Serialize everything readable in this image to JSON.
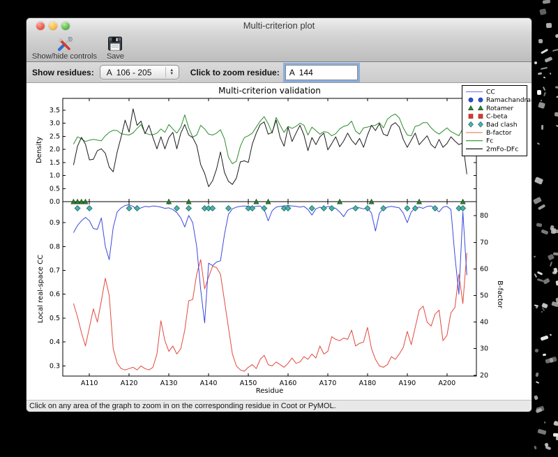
{
  "window": {
    "title": "Multi-criterion plot"
  },
  "toolbar": {
    "show_hide_label": "Show/hide controls",
    "save_label": "Save"
  },
  "controls": {
    "show_residues_label": "Show residues:",
    "show_residues_value": "A  106 - 205",
    "zoom_residue_label": "Click to zoom residue:",
    "zoom_residue_value": "A  144"
  },
  "status_bar": {
    "text": "Click on any area of the graph to zoom in on the corresponding residue in Coot or PyMOL."
  },
  "chart_data": {
    "type": "line",
    "title": "Multi-criterion validation",
    "xlabel": "Residue",
    "residue_start": 106,
    "residue_end": 205,
    "x_ticks": [
      110,
      120,
      130,
      140,
      150,
      160,
      170,
      180,
      190,
      200
    ],
    "x_tick_labels": [
      "A110",
      "A120",
      "A130",
      "A140",
      "A150",
      "A160",
      "A170",
      "A180",
      "A190",
      "A200"
    ],
    "top": {
      "ylabel": "Density",
      "ylim": [
        0,
        3.95
      ],
      "yticks": [
        0.0,
        0.5,
        1.0,
        1.5,
        2.0,
        2.5,
        3.0,
        3.5
      ],
      "ytick_labels": [
        "0.0",
        "0.5",
        "1.0",
        "1.5",
        "2.0",
        "2.5",
        "3.0",
        "3.5"
      ],
      "series": [
        {
          "name": "Fc",
          "color": "#2e8b2e",
          "values": [
            2.2,
            2.48,
            2.4,
            2.3,
            2.35,
            2.38,
            2.35,
            2.33,
            2.52,
            2.65,
            2.73,
            2.72,
            2.6,
            2.57,
            2.55,
            2.63,
            2.8,
            2.95,
            2.62,
            2.57,
            2.56,
            2.62,
            2.78,
            2.65,
            2.95,
            2.78,
            2.62,
            2.85,
            3.32,
            2.82,
            2.47,
            2.55,
            2.92,
            2.78,
            2.58,
            2.55,
            2.62,
            2.75,
            2.4,
            1.7,
            1.45,
            1.55,
            2.12,
            2.45,
            2.52,
            2.62,
            2.85,
            3.08,
            3.25,
            2.98,
            2.62,
            3.22,
            2.92,
            2.65,
            2.88,
            2.8,
            2.88,
            3.0,
            2.92,
            2.55,
            2.85,
            2.72,
            2.58,
            2.68,
            2.65,
            2.52,
            2.6,
            2.78,
            2.88,
            2.92,
            3.08,
            2.7,
            2.58,
            2.82,
            2.85,
            2.9,
            2.92,
            3.02,
            2.82,
            3.15,
            3.28,
            3.35,
            3.2,
            2.82,
            2.55,
            2.52,
            2.88,
            2.92,
            3.02,
            3.02,
            2.82,
            2.68,
            2.58,
            2.7,
            2.82,
            2.68,
            2.6,
            2.52,
            2.8,
            2.28
          ]
        },
        {
          "name": "2mFo-DFc",
          "color": "#1a1a1a",
          "values": [
            1.4,
            2.12,
            2.46,
            2.2,
            1.6,
            1.62,
            1.95,
            2.02,
            1.85,
            1.32,
            1.14,
            1.9,
            2.48,
            3.12,
            2.66,
            3.55,
            2.92,
            3.08,
            2.6,
            2.92,
            2.45,
            2.02,
            2.48,
            2.02,
            2.45,
            2.65,
            2.02,
            2.62,
            2.95,
            2.55,
            2.45,
            2.15,
            1.42,
            1.08,
            0.57,
            0.8,
            1.25,
            1.9,
            1.12,
            0.78,
            0.66,
            0.9,
            1.52,
            1.56,
            1.5,
            2.2,
            2.62,
            2.95,
            3.05,
            2.58,
            2.65,
            3.12,
            2.45,
            2.12,
            2.85,
            2.3,
            2.62,
            2.92,
            2.55,
            1.95,
            2.45,
            2.18,
            2.48,
            2.62,
            1.98,
            2.22,
            2.48,
            2.1,
            2.32,
            2.62,
            2.35,
            2.18,
            2.42,
            2.08,
            2.55,
            2.92,
            2.72,
            2.98,
            2.58,
            2.52,
            2.92,
            3.02,
            2.85,
            2.38,
            2.08,
            2.35,
            2.62,
            2.18,
            2.35,
            2.52,
            2.18,
            2.05,
            2.38,
            2.08,
            2.22,
            2.48,
            2.32,
            2.18,
            2.25,
            1.05
          ]
        }
      ]
    },
    "bottom": {
      "left_ylabel": "Local real-space CC",
      "left_label_color": "#3c48dd",
      "left_ylim": [
        0.257,
        0.988
      ],
      "left_yticks": [
        0.3,
        0.4,
        0.5,
        0.6,
        0.7,
        0.8,
        0.9
      ],
      "left_ytick_labels": [
        "0.3",
        "0.4",
        "0.5",
        "0.6",
        "0.7",
        "0.8",
        "0.9"
      ],
      "right_ylabel": "B-factor",
      "right_label_color": "#e2483c",
      "right_ylim": [
        19.7,
        85.3
      ],
      "right_yticks": [
        20,
        30,
        40,
        50,
        60,
        70,
        80
      ],
      "right_ytick_labels": [
        "20",
        "30",
        "40",
        "50",
        "60",
        "70",
        "80"
      ],
      "series": [
        {
          "name": "CC",
          "axis": "left",
          "color": "#3c48dd",
          "values": [
            0.858,
            0.888,
            0.908,
            0.922,
            0.908,
            0.875,
            0.872,
            0.92,
            0.8,
            0.745,
            0.88,
            0.945,
            0.962,
            0.972,
            0.975,
            0.968,
            0.955,
            0.962,
            0.968,
            0.966,
            0.97,
            0.968,
            0.965,
            0.96,
            0.962,
            0.955,
            0.942,
            0.92,
            0.882,
            0.93,
            0.9,
            0.8,
            0.62,
            0.48,
            0.73,
            0.72,
            0.735,
            0.74,
            0.85,
            0.935,
            0.958,
            0.965,
            0.968,
            0.97,
            0.968,
            0.965,
            0.968,
            0.97,
            0.955,
            0.908,
            0.95,
            0.965,
            0.968,
            0.97,
            0.972,
            0.97,
            0.968,
            0.965,
            0.968,
            0.955,
            0.932,
            0.958,
            0.965,
            0.96,
            0.968,
            0.965,
            0.96,
            0.945,
            0.925,
            0.952,
            0.96,
            0.965,
            0.962,
            0.958,
            0.962,
            0.94,
            0.865,
            0.94,
            0.96,
            0.965,
            0.968,
            0.965,
            0.962,
            0.94,
            0.9,
            0.945,
            0.962,
            0.965,
            0.96,
            0.968,
            0.97,
            0.96,
            0.945,
            0.965,
            0.968,
            0.955,
            0.76,
            0.6,
            0.945,
            0.68
          ]
        },
        {
          "name": "B-factor",
          "axis": "right",
          "color": "#e2483c",
          "values": [
            47,
            42,
            36,
            31,
            38,
            45,
            40,
            48,
            56.5,
            50,
            30,
            24.5,
            22.5,
            22,
            22.5,
            23,
            22,
            23.5,
            22.5,
            22,
            23,
            28,
            40.5,
            33,
            29,
            31,
            28,
            30,
            37,
            48,
            48.5,
            58,
            63.5,
            52.5,
            57,
            61,
            60.5,
            58,
            48,
            38,
            28,
            23.5,
            22,
            21.5,
            23,
            24,
            22.5,
            26,
            27.5,
            24,
            23.5,
            25,
            24,
            23,
            24.5,
            26.5,
            24.5,
            25,
            27,
            26,
            28,
            26.5,
            31,
            28,
            29,
            34.5,
            33.5,
            33,
            34,
            33.5,
            37,
            31,
            32,
            32.5,
            38,
            30,
            26,
            23.5,
            23,
            24,
            27,
            26,
            28,
            30.5,
            36.5,
            31.5,
            38,
            44.5,
            46,
            40,
            38.5,
            43,
            44.5,
            33,
            35,
            43.5,
            45.5,
            58,
            47,
            66
          ]
        }
      ],
      "markers": [
        {
          "name": "Rotamer",
          "shape": "triangle",
          "fill": "#2e7d32",
          "edge": "#0e3d11",
          "residues": [
            106,
            107,
            108,
            109,
            130,
            135,
            152,
            155,
            173,
            181,
            193,
            204
          ]
        },
        {
          "name": "Bad clash",
          "shape": "diamond",
          "fill": "#4ab5ac",
          "edge": "#17635e",
          "residues": [
            107,
            110,
            120,
            122,
            132,
            135,
            139,
            140,
            141,
            145,
            150,
            151,
            154,
            159,
            160,
            166,
            169,
            171,
            177,
            180,
            184,
            190,
            192,
            197,
            203,
            204
          ]
        }
      ]
    },
    "legend": [
      {
        "label": "CC",
        "type": "line",
        "color": "#7b86ef"
      },
      {
        "label": "Ramachandran",
        "type": "circle",
        "color": "#2d4fd0",
        "edge": "#16308f"
      },
      {
        "label": "Rotamer",
        "type": "triangle",
        "color": "#2e8b2e",
        "edge": "#0e3d11"
      },
      {
        "label": "C-beta",
        "type": "square",
        "color": "#d93b2e",
        "edge": "#8c1f16"
      },
      {
        "label": "Bad clash",
        "type": "diamond",
        "color": "#4ab5ac",
        "edge": "#17635e"
      },
      {
        "label": "B-factor",
        "type": "line",
        "color": "#f4836f"
      },
      {
        "label": "Fc",
        "type": "line",
        "color": "#2e8b2e"
      },
      {
        "label": "2mFo-DFc",
        "type": "line",
        "color": "#1a1a1a"
      }
    ]
  }
}
